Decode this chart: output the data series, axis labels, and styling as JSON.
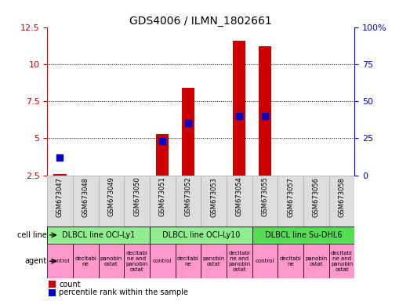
{
  "title": "GDS4006 / ILMN_1802661",
  "samples": [
    "GSM673047",
    "GSM673048",
    "GSM673049",
    "GSM673050",
    "GSM673051",
    "GSM673052",
    "GSM673053",
    "GSM673054",
    "GSM673055",
    "GSM673057",
    "GSM673056",
    "GSM673058"
  ],
  "count_values": [
    2.6,
    null,
    null,
    null,
    5.3,
    8.4,
    null,
    11.6,
    11.2,
    null,
    null,
    null
  ],
  "percentile_values": [
    3.7,
    null,
    null,
    null,
    4.8,
    6.0,
    null,
    6.5,
    6.5,
    null,
    null,
    null
  ],
  "ylim_left": [
    2.5,
    12.5
  ],
  "ylim_right": [
    0,
    100
  ],
  "yticks_left": [
    2.5,
    5.0,
    7.5,
    10.0,
    12.5
  ],
  "yticks_right": [
    0,
    25,
    50,
    75,
    100
  ],
  "ytick_labels_left": [
    "2.5",
    "5",
    "7.5",
    "10",
    "12.5"
  ],
  "ytick_labels_right": [
    "0",
    "25",
    "50",
    "75",
    "100%"
  ],
  "cell_lines": [
    {
      "label": "DLBCL line OCI-Ly1",
      "start": 0,
      "end": 4,
      "color": "#90EE90"
    },
    {
      "label": "DLBCL line OCI-Ly10",
      "start": 4,
      "end": 8,
      "color": "#90EE90"
    },
    {
      "label": "DLBCL line Su-DHL6",
      "start": 8,
      "end": 12,
      "color": "#55DD55"
    }
  ],
  "agents": [
    {
      "label": "control",
      "col": 0
    },
    {
      "label": "decitabi\nne",
      "col": 1
    },
    {
      "label": "panobin\nostat",
      "col": 2
    },
    {
      "label": "decitabi\nne and\npanobin\nostat",
      "col": 3
    },
    {
      "label": "control",
      "col": 4
    },
    {
      "label": "decitabi\nne",
      "col": 5
    },
    {
      "label": "panobin\nostat",
      "col": 6
    },
    {
      "label": "decitabi\nne and\npanobin\nostat",
      "col": 7
    },
    {
      "label": "control",
      "col": 8
    },
    {
      "label": "decitabi\nne",
      "col": 9
    },
    {
      "label": "panobin\nostat",
      "col": 10
    },
    {
      "label": "decitabi\nne and\npanobin\nostat",
      "col": 11
    }
  ],
  "agent_color": "#FF99CC",
  "bar_color": "#CC0000",
  "dot_color": "#0000CC",
  "bar_width": 0.5,
  "dot_size": 30,
  "background_color": "#FFFFFF",
  "tick_color_left": "#CC0000",
  "tick_color_right": "#0000CC",
  "label_fontsize": 7,
  "tick_fontsize": 8,
  "sample_fontsize": 6,
  "agent_fontsize": 5,
  "cell_line_fontsize": 7
}
